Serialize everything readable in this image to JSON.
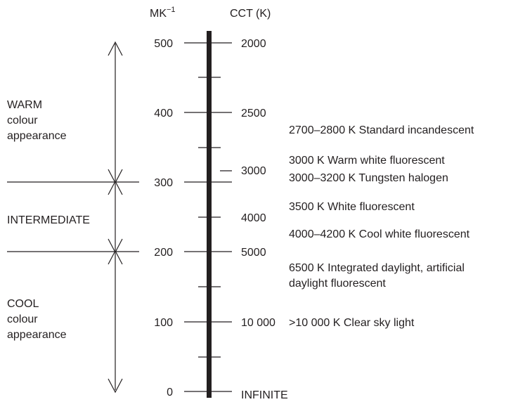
{
  "headers": {
    "mired": "MK",
    "mired_exponent": "−1",
    "cct": "CCT (K)"
  },
  "zones": [
    {
      "lines": [
        "WARM",
        "colour",
        "appearance"
      ]
    },
    {
      "lines": [
        "INTERMEDIATE"
      ]
    },
    {
      "lines": [
        "COOL",
        "colour",
        "appearance"
      ]
    }
  ],
  "mired_ticks": [
    "500",
    "400",
    "300",
    "200",
    "100",
    "0"
  ],
  "cct_labels": [
    "2000",
    "2500",
    "3000",
    "4000",
    "5000",
    "10 000",
    "INFINITE"
  ],
  "sources": [
    "2700–2800 K Standard incandescent",
    "3000 K Warm white fluorescent",
    "3000–3200 K Tungsten halogen",
    "3500 K White fluorescent",
    "4000–4200 K Cool white fluorescent",
    "6500 K Integrated daylight, artificial",
    "daylight fluorescent",
    ">10 000 K Clear sky light"
  ],
  "colors": {
    "ink": "#231f20",
    "background": "#ffffff"
  }
}
